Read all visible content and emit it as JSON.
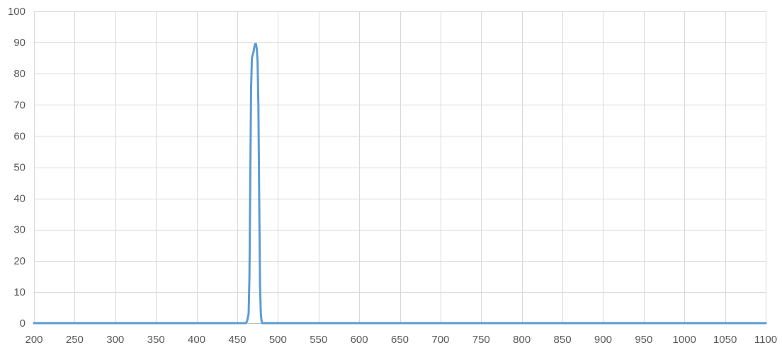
{
  "chart_data": {
    "type": "line",
    "title": "",
    "xlabel": "",
    "ylabel": "",
    "xlim": [
      200,
      1100
    ],
    "ylim": [
      0,
      100
    ],
    "x_ticks": [
      200,
      250,
      300,
      350,
      400,
      450,
      500,
      550,
      600,
      650,
      700,
      750,
      800,
      850,
      900,
      950,
      1000,
      1050,
      1100
    ],
    "y_ticks": [
      0,
      10,
      20,
      30,
      40,
      50,
      60,
      70,
      80,
      90,
      100
    ],
    "grid": true,
    "legend": "none",
    "colors": {
      "series": "#5b9bd5",
      "grid": "#d9d9d9",
      "axis": "#bfbfbf",
      "tick_text": "#595959"
    },
    "series": [
      {
        "x": [
          200,
          460,
          462,
          464,
          465,
          466,
          467,
          468,
          469,
          470,
          471,
          472,
          473,
          474,
          475,
          476,
          477,
          478,
          479,
          480,
          481,
          482,
          1100
        ],
        "y": [
          0,
          0,
          0.5,
          3,
          15,
          45,
          75,
          85,
          86,
          87,
          88.5,
          89.5,
          89.5,
          88,
          84,
          70,
          40,
          12,
          3,
          0.5,
          0,
          0,
          0
        ]
      }
    ]
  }
}
